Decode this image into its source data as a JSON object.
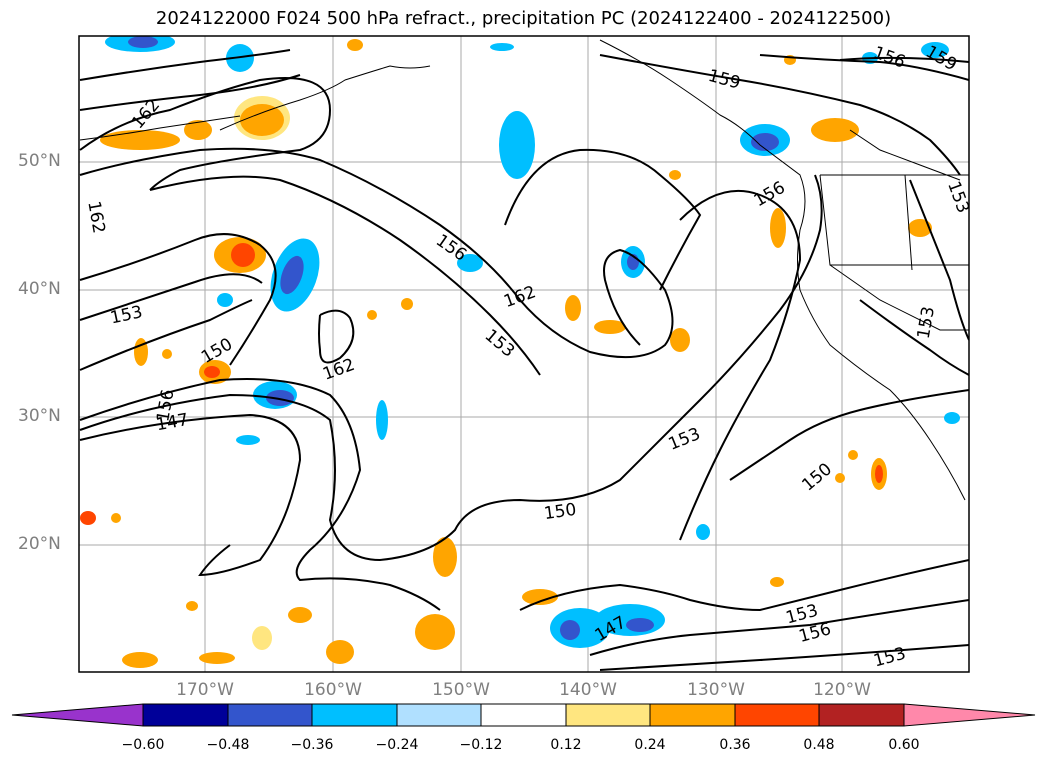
{
  "title": "2024122000 F024 500 hPa refract., precipitation PC (2024122400 - 2024122500)",
  "lat_labels": [
    "50°N",
    "40°N",
    "30°N",
    "20°N"
  ],
  "lon_labels": [
    "170°W",
    "160°W",
    "150°W",
    "140°W",
    "130°W",
    "120°W"
  ],
  "contour_labels": [
    "162",
    "162",
    "153",
    "150",
    "156",
    "147",
    "162",
    "156",
    "162",
    "153",
    "153",
    "150",
    "150",
    "147",
    "153",
    "156",
    "153",
    "159",
    "156",
    "159",
    "156",
    "153",
    "153"
  ],
  "colorbar": {
    "ticks": [
      "−0.60",
      "−0.48",
      "−0.36",
      "−0.24",
      "−0.12",
      "0.12",
      "0.24",
      "0.36",
      "0.48",
      "0.60"
    ],
    "colors": [
      "#9933cc",
      "#000099",
      "#3355cc",
      "#00bfff",
      "#b0e0ff",
      "#ffffff",
      "#ffe680",
      "#ffa500",
      "#ff4500",
      "#b22222",
      "#ff88aa"
    ]
  }
}
